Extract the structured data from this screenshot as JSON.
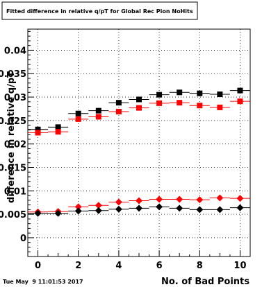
{
  "chart_data": {
    "type": "scatter",
    "title": "Fitted difference in relative q/pT for Global Rec Pion NoHits",
    "xlabel": "No. of Bad Points",
    "ylabel": "difference in relative q/pT",
    "timestamp": "Tue May  9 11:01:53 2017",
    "xlim": [
      -0.5,
      10.5
    ],
    "ylim": [
      -0.004,
      0.0445
    ],
    "x_ticks": [
      0,
      2,
      4,
      6,
      8,
      10
    ],
    "y_ticks": [
      {
        "v": 0,
        "label": "0"
      },
      {
        "v": 0.005,
        "label": "0.005"
      },
      {
        "v": 0.01,
        "label": "0.01"
      },
      {
        "v": 0.015,
        "label": "0.015"
      },
      {
        "v": 0.02,
        "label": "0.02"
      },
      {
        "v": 0.025,
        "label": "0.025"
      },
      {
        "v": 0.03,
        "label": "0.03"
      },
      {
        "v": 0.035,
        "label": "0.035"
      },
      {
        "v": 0.04,
        "label": "0.04"
      }
    ],
    "grid": true,
    "series": [
      {
        "marker": "square",
        "color": "#000000",
        "x": [
          0,
          1,
          2,
          3,
          4,
          5,
          6,
          7,
          8,
          9,
          10
        ],
        "y": [
          0.0231,
          0.0236,
          0.0265,
          0.0271,
          0.0288,
          0.0295,
          0.0305,
          0.031,
          0.0308,
          0.0306,
          0.0314
        ]
      },
      {
        "marker": "square",
        "color": "#ff0000",
        "x": [
          0,
          1,
          2,
          3,
          4,
          5,
          6,
          7,
          8,
          9,
          10
        ],
        "y": [
          0.0224,
          0.0226,
          0.0253,
          0.0258,
          0.0269,
          0.0277,
          0.0287,
          0.0288,
          0.0282,
          0.0278,
          0.0291
        ]
      },
      {
        "marker": "diamond",
        "color": "#ff0000",
        "x": [
          0,
          1,
          2,
          3,
          4,
          5,
          6,
          7,
          8,
          9,
          10
        ],
        "y": [
          0.0055,
          0.0056,
          0.0066,
          0.0069,
          0.0076,
          0.0079,
          0.0082,
          0.0082,
          0.0081,
          0.0085,
          0.0084
        ]
      },
      {
        "marker": "diamond",
        "color": "#000000",
        "x": [
          0,
          1,
          2,
          3,
          4,
          5,
          6,
          7,
          8,
          9,
          10
        ],
        "y": [
          0.0052,
          0.0052,
          0.0057,
          0.0058,
          0.0061,
          0.0063,
          0.0066,
          0.0063,
          0.006,
          0.006,
          0.0064
        ]
      }
    ]
  }
}
